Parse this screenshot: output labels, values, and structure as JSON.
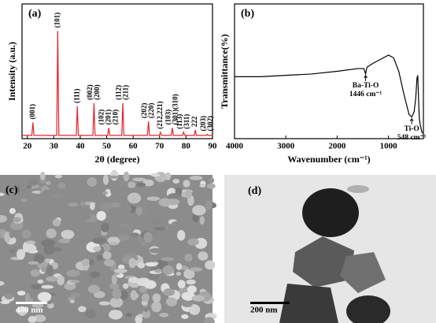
{
  "chart_data": [
    {
      "type": "line",
      "panel_label": "(a)",
      "x_label": "2θ (degree)",
      "y_label": "Intensity (a.u.)",
      "x": [
        18,
        21.7,
        22.1,
        22.5,
        31.1,
        31.5,
        31.9,
        38.5,
        38.9,
        39.3,
        44.8,
        45.2,
        45.6,
        50.4,
        50.8,
        51.2,
        55.7,
        56.1,
        56.5,
        65.4,
        65.8,
        66.2,
        69.9,
        70.3,
        70.7,
        74.4,
        74.8,
        75.2,
        78.7,
        79.1,
        79.5,
        83.1,
        83.5,
        83.9,
        87.6,
        88,
        88.4,
        90
      ],
      "series": [
        {
          "color": "#e8202a",
          "values": [
            0.03,
            0.03,
            0.15,
            0.03,
            0.03,
            1.0,
            0.03,
            0.03,
            0.3,
            0.03,
            0.03,
            0.33,
            0.03,
            0.03,
            0.1,
            0.03,
            0.03,
            0.33,
            0.03,
            0.03,
            0.16,
            0.03,
            0.03,
            0.06,
            0.03,
            0.03,
            0.1,
            0.03,
            0.03,
            0.06,
            0.03,
            0.03,
            0.08,
            0.03,
            0.03,
            0.04,
            0.03,
            0.03
          ]
        }
      ],
      "xlim": [
        18,
        90
      ],
      "ylim": [
        0,
        1.25
      ],
      "xticks": [
        20,
        30,
        40,
        50,
        60,
        70,
        80,
        90
      ],
      "peak_labels": [
        {
          "x": 22.1,
          "labels": [
            "(001)"
          ]
        },
        {
          "x": 31.5,
          "labels": [
            "(101)"
          ]
        },
        {
          "x": 38.9,
          "labels": [
            "(111)"
          ]
        },
        {
          "x": 45.2,
          "labels": [
            "(002)",
            "(200)"
          ]
        },
        {
          "x": 50.8,
          "labels": [
            "(102)",
            "(201)",
            "(210)"
          ]
        },
        {
          "x": 56.1,
          "labels": [
            "(112)",
            "(211)"
          ]
        },
        {
          "x": 65.8,
          "labels": [
            "(202)",
            "(220)"
          ]
        },
        {
          "x": 70.3,
          "labels": [
            "(212,221)"
          ]
        },
        {
          "x": 74.8,
          "labels": [
            "(103)",
            "(301)(310)"
          ]
        },
        {
          "x": 79.1,
          "labels": [
            "(113)",
            "(311)"
          ]
        },
        {
          "x": 83.5,
          "labels": [
            "222"
          ]
        },
        {
          "x": 88,
          "labels": [
            "(203)",
            "(302)"
          ]
        }
      ]
    },
    {
      "type": "line",
      "panel_label": "(b)",
      "x_label": "Wavenumber (cm⁻¹)",
      "y_label": "Transmittance(%)",
      "x": [
        4000,
        3500,
        3000,
        2500,
        2000,
        1600,
        1480,
        1446,
        1420,
        1300,
        1150,
        1000,
        900,
        800,
        700,
        600,
        548,
        500,
        470,
        445,
        430,
        415,
        400,
        380,
        350,
        330
      ],
      "series": [
        {
          "color": "#000000",
          "values": [
            0.46,
            0.46,
            0.47,
            0.48,
            0.5,
            0.52,
            0.52,
            0.48,
            0.53,
            0.56,
            0.59,
            0.62,
            0.6,
            0.5,
            0.33,
            0.18,
            0.16,
            0.2,
            0.3,
            0.45,
            0.47,
            0.3,
            0.15,
            0.1,
            0.05,
            0.04
          ]
        }
      ],
      "xlim": [
        4000,
        320
      ],
      "ylim": [
        0,
        1
      ],
      "xticks": [
        4000,
        3000,
        2000,
        1000
      ],
      "annotations": [
        {
          "x": 1446,
          "text": [
            "Ba-Ti-O",
            "1446 cm⁻¹"
          ]
        },
        {
          "x": 548,
          "text": [
            "Ti-O",
            "548 cm⁻¹"
          ]
        }
      ]
    }
  ],
  "images": [
    {
      "label": "(c)",
      "scale_bar": "400 nm"
    },
    {
      "label": "(d)",
      "scale_bar": "200 nm"
    }
  ]
}
